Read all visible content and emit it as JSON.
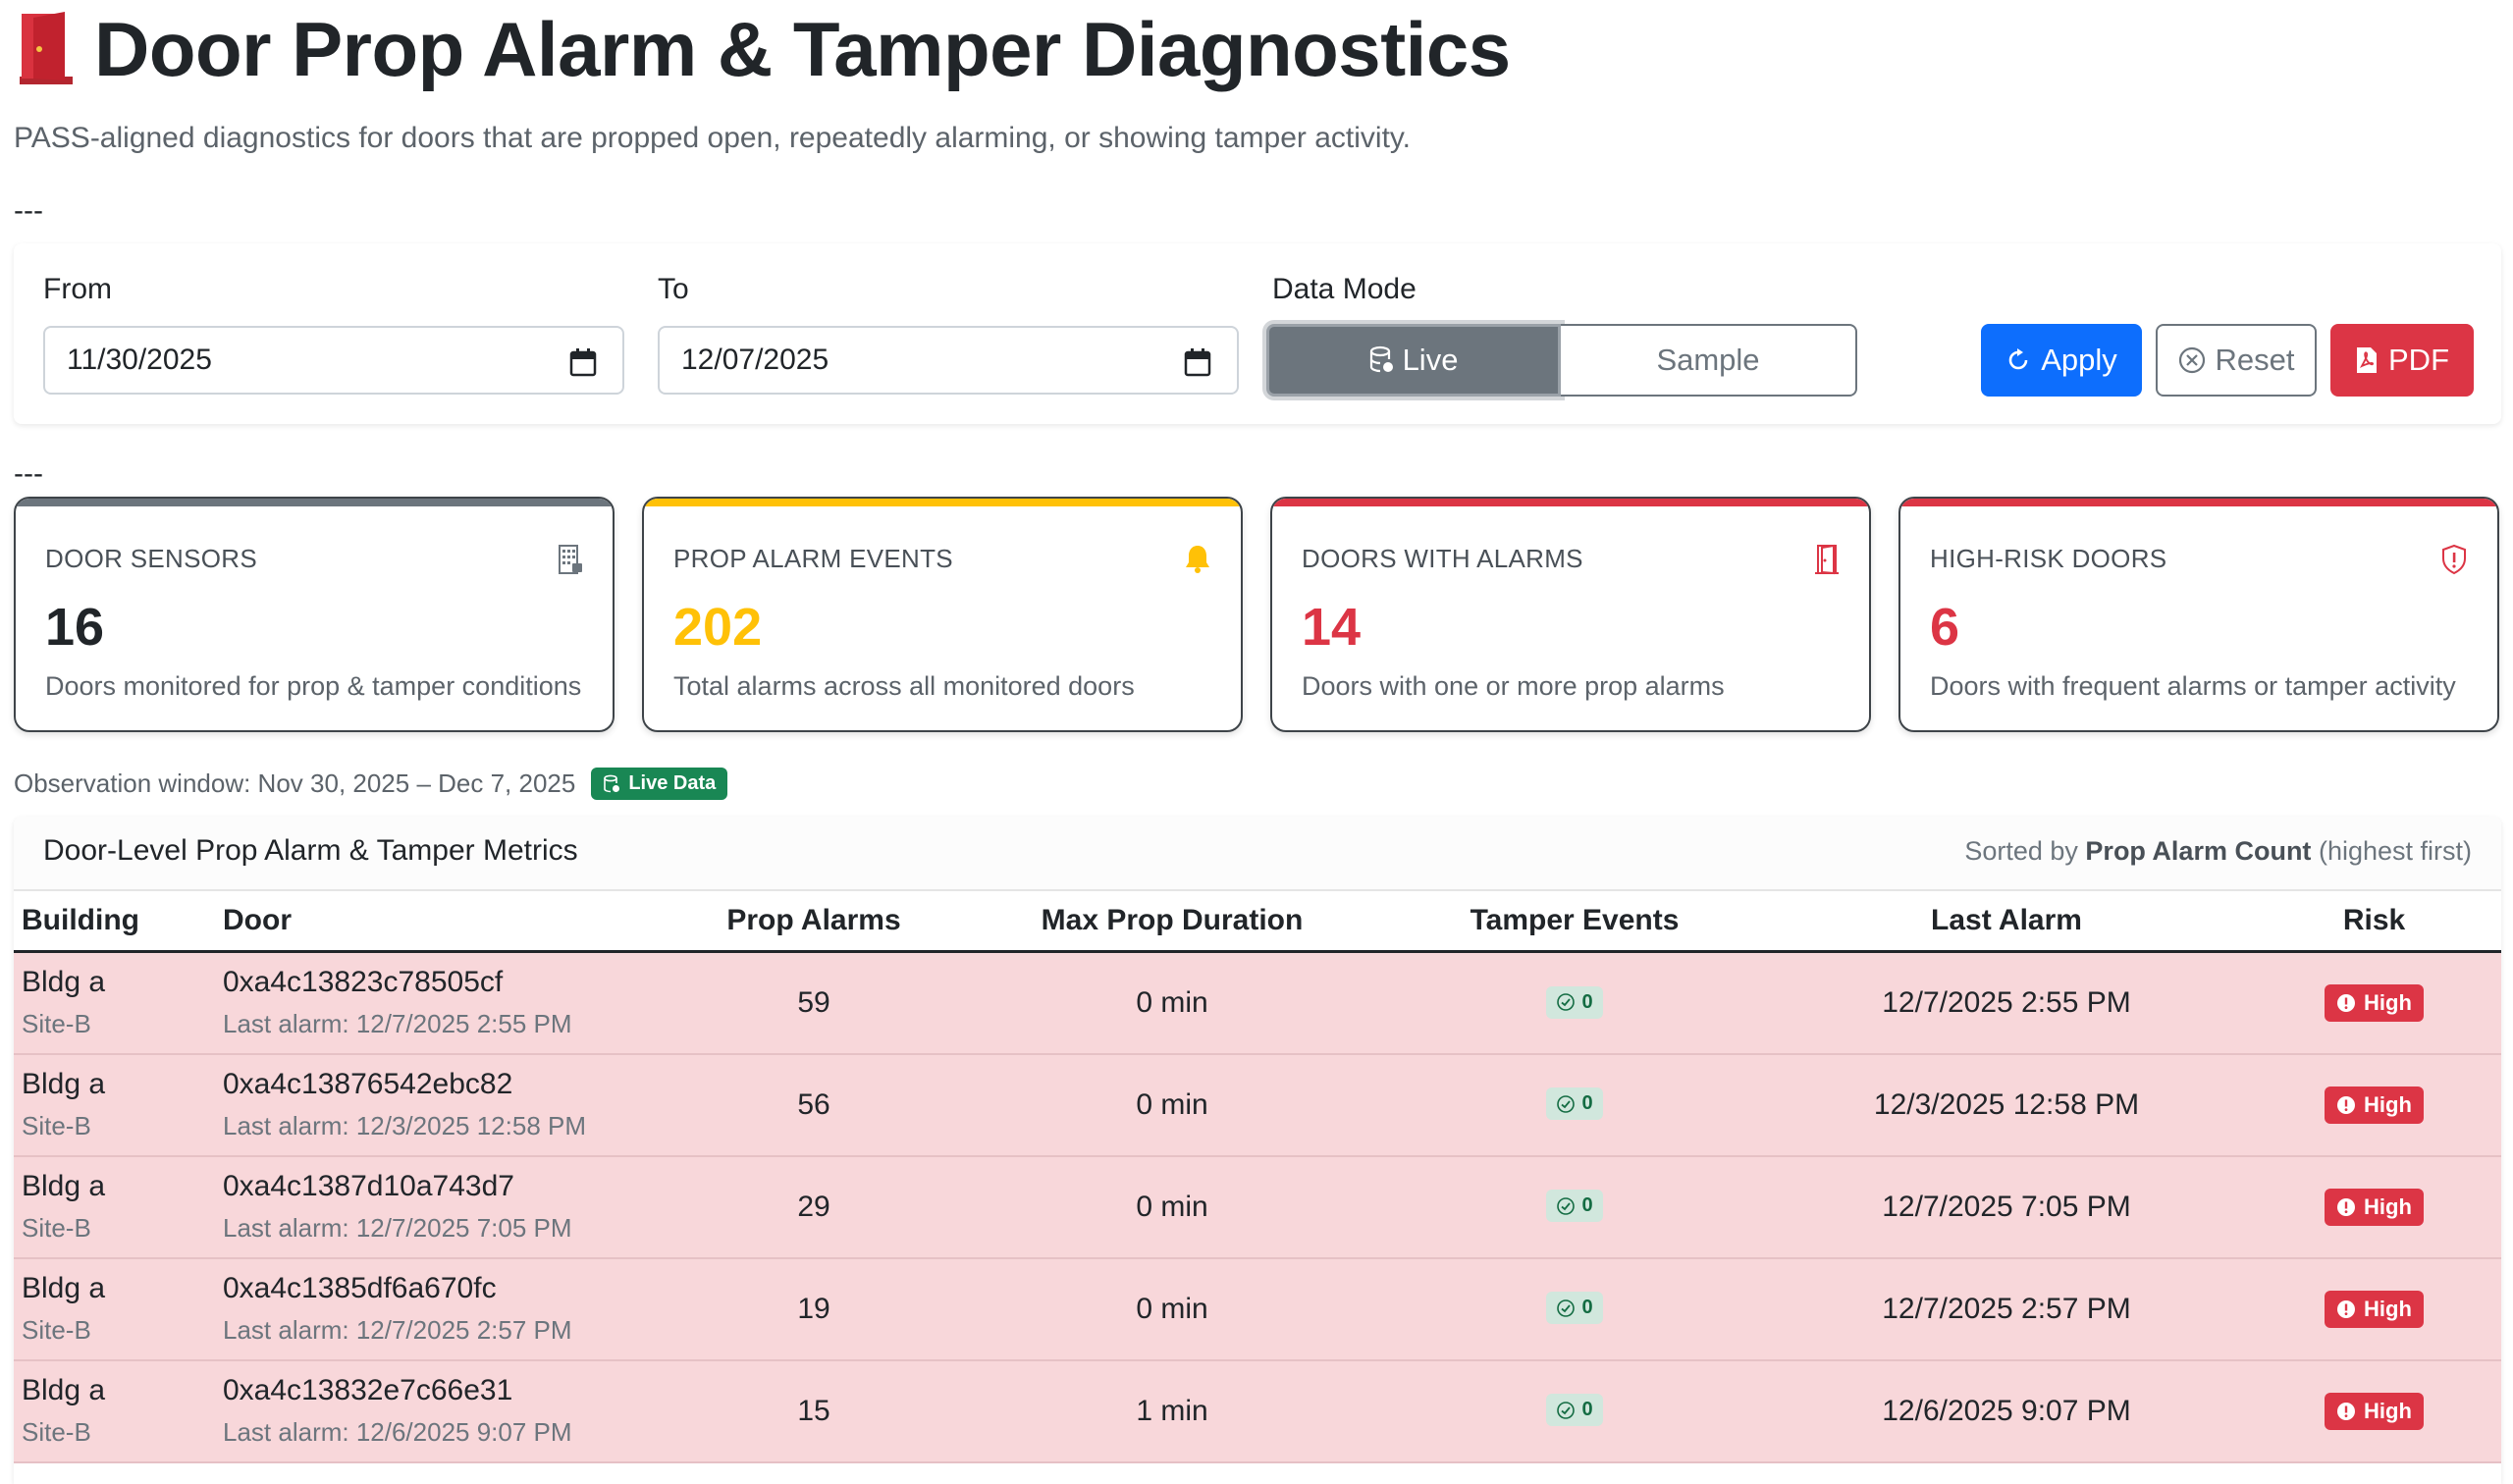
{
  "header": {
    "title": "Door Prop Alarm & Tamper Diagnostics",
    "subtitle": "PASS-aligned diagnostics for doors that are propped open, repeatedly alarming, or showing tamper activity.",
    "divider": "---"
  },
  "filters": {
    "from_label": "From",
    "from_value": "11/30/2025",
    "to_label": "To",
    "to_value": "12/07/2025",
    "mode_label": "Data Mode",
    "mode_live": "Live",
    "mode_sample": "Sample",
    "apply": "Apply",
    "reset": "Reset",
    "pdf": "PDF"
  },
  "cards": [
    {
      "title": "DOOR SENSORS",
      "value": "16",
      "desc": "Doors monitored for prop & tamper conditions",
      "accent": "#6c757d",
      "value_color": "#212529",
      "icon": "building-icon"
    },
    {
      "title": "PROP ALARM EVENTS",
      "value": "202",
      "desc": "Total alarms across all monitored doors",
      "accent": "#ffc107",
      "value_color": "#ffc107",
      "icon": "bell-icon"
    },
    {
      "title": "DOORS WITH ALARMS",
      "value": "14",
      "desc": "Doors with one or more prop alarms",
      "accent": "#dc3545",
      "value_color": "#dc3545",
      "icon": "door-icon"
    },
    {
      "title": "HIGH-RISK DOORS",
      "value": "6",
      "desc": "Doors with frequent alarms or tamper activity",
      "accent": "#dc3545",
      "value_color": "#dc3545",
      "icon": "shield-alert-icon"
    }
  ],
  "observation": {
    "text": "Observation window: Nov 30, 2025 – Dec 7, 2025",
    "badge": "Live Data"
  },
  "table": {
    "title": "Door-Level Prop Alarm & Tamper Metrics",
    "sort_prefix": "Sorted by",
    "sort_field": "Prop Alarm Count",
    "sort_suffix": "(highest first)",
    "columns": [
      "Building",
      "Door",
      "Prop Alarms",
      "Max Prop Duration",
      "Tamper Events",
      "Last Alarm",
      "Risk"
    ],
    "rows": [
      {
        "building": "Bldg a",
        "site": "Site-B",
        "door": "0xa4c13823c78505cf",
        "last_alarm_sub": "Last alarm: 12/7/2025 2:55 PM",
        "prop_alarms": "59",
        "max_duration": "0 min",
        "tamper": "0",
        "last_alarm": "12/7/2025 2:55 PM",
        "risk": "High"
      },
      {
        "building": "Bldg a",
        "site": "Site-B",
        "door": "0xa4c13876542ebc82",
        "last_alarm_sub": "Last alarm: 12/3/2025 12:58 PM",
        "prop_alarms": "56",
        "max_duration": "0 min",
        "tamper": "0",
        "last_alarm": "12/3/2025 12:58 PM",
        "risk": "High"
      },
      {
        "building": "Bldg a",
        "site": "Site-B",
        "door": "0xa4c1387d10a743d7",
        "last_alarm_sub": "Last alarm: 12/7/2025 7:05 PM",
        "prop_alarms": "29",
        "max_duration": "0 min",
        "tamper": "0",
        "last_alarm": "12/7/2025 7:05 PM",
        "risk": "High"
      },
      {
        "building": "Bldg a",
        "site": "Site-B",
        "door": "0xa4c1385df6a670fc",
        "last_alarm_sub": "Last alarm: 12/7/2025 2:57 PM",
        "prop_alarms": "19",
        "max_duration": "0 min",
        "tamper": "0",
        "last_alarm": "12/7/2025 2:57 PM",
        "risk": "High"
      },
      {
        "building": "Bldg a",
        "site": "Site-B",
        "door": "0xa4c13832e7c66e31",
        "last_alarm_sub": "Last alarm: 12/6/2025 9:07 PM",
        "prop_alarms": "15",
        "max_duration": "1 min",
        "tamper": "0",
        "last_alarm": "12/6/2025 9:07 PM",
        "risk": "High"
      }
    ]
  }
}
